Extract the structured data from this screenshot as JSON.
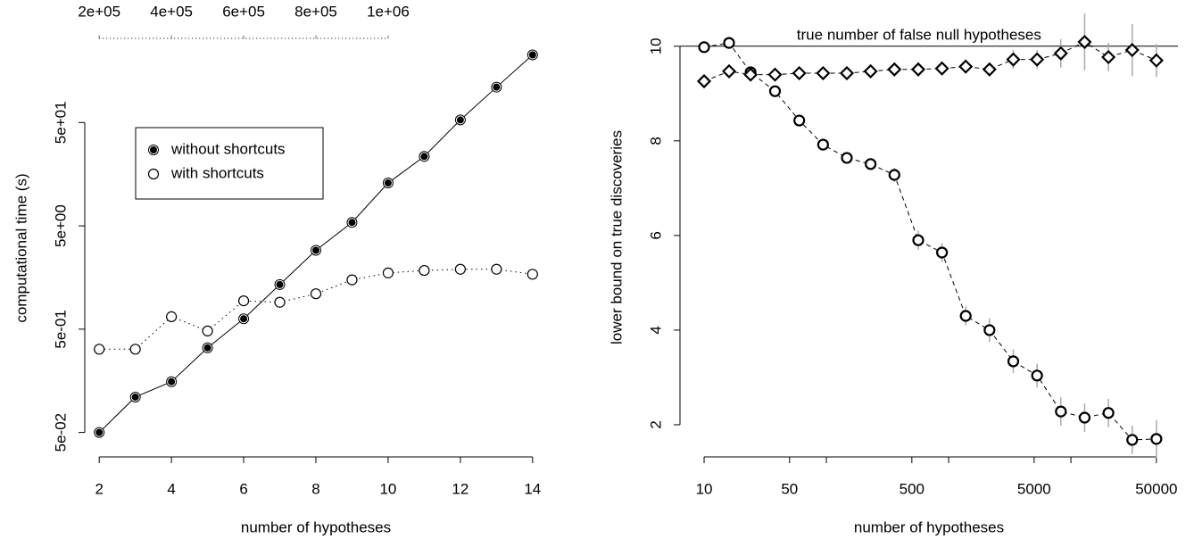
{
  "chart_data": [
    {
      "type": "line",
      "xlabel": "number of hypotheses",
      "ylabel": "computational time (s)",
      "x": [
        2,
        3,
        4,
        5,
        6,
        7,
        8,
        9,
        10,
        11,
        12,
        13,
        14
      ],
      "xlim": [
        1.6,
        14.4
      ],
      "xticks": [
        2,
        4,
        6,
        8,
        10,
        12,
        14
      ],
      "yscale": "log",
      "ylim": [
        0.029,
        320
      ],
      "yticks": [
        {
          "value": 0.05,
          "label": "5e-02"
        },
        {
          "value": 0.5,
          "label": "5e-01"
        },
        {
          "value": 5,
          "label": "5e+00"
        },
        {
          "value": 50,
          "label": "5e+01"
        }
      ],
      "x2lim": [
        160000,
        1440000
      ],
      "x2ticks": [
        {
          "value": 200000,
          "label": "2e+05"
        },
        {
          "value": 400000,
          "label": "4e+05"
        },
        {
          "value": 600000,
          "label": "6e+05"
        },
        {
          "value": 800000,
          "label": "8e+05"
        },
        {
          "value": 1000000,
          "label": "1e+06"
        }
      ],
      "legend": "top-left",
      "series": [
        {
          "name": "without shortcuts",
          "color": "#000000",
          "marker": "filled",
          "linestyle": "solid",
          "values": [
            0.05,
            0.11,
            0.155,
            0.33,
            0.63,
            1.35,
            2.9,
            5.4,
            13,
            23.5,
            53,
            110,
            226
          ]
        },
        {
          "name": "with shortcuts",
          "color": "#000000",
          "marker": "open",
          "linestyle": "dotted",
          "values": [
            0.32,
            0.32,
            0.66,
            0.48,
            0.94,
            0.91,
            1.1,
            1.5,
            1.75,
            1.85,
            1.9,
            1.9,
            1.7
          ]
        }
      ]
    },
    {
      "type": "line",
      "xlabel": "number of hypotheses",
      "ylabel": "lower bound on true discoveries",
      "xscale": "log",
      "x": [
        10,
        16,
        24,
        38,
        60,
        94,
        147,
        230,
        360,
        564,
        882,
        1379,
        2158,
        3378,
        5285,
        8271,
        12943,
        20256,
        31698,
        50000
      ],
      "xlim": [
        6.35,
        75000
      ],
      "xticks": [
        10,
        50,
        500,
        5000,
        50000
      ],
      "xminorticks": [
        100,
        1000,
        10000
      ],
      "ylim": [
        1.32,
        10.6
      ],
      "yticks": [
        2,
        4,
        6,
        8,
        10
      ],
      "hline": {
        "value": 10,
        "label": "true number of false null hypotheses"
      },
      "error_color": "#aaaaaa",
      "series": [
        {
          "color": "#000000",
          "marker": "open",
          "linestyle": "dashed",
          "values": [
            9.98,
            10.07,
            9.45,
            9.05,
            8.43,
            7.92,
            7.64,
            7.51,
            7.28,
            5.9,
            5.64,
            4.3,
            4.0,
            3.34,
            3.04,
            2.28,
            2.15,
            2.25,
            1.68,
            1.7
          ],
          "errors": [
            0.05,
            0.05,
            0.1,
            0.1,
            0.1,
            0.1,
            0.1,
            0.1,
            0.15,
            0.2,
            0.2,
            0.2,
            0.25,
            0.25,
            0.25,
            0.3,
            0.3,
            0.3,
            0.3,
            0.4
          ]
        },
        {
          "color": "#000000",
          "marker": "diamond",
          "linestyle": "dashed",
          "values": [
            9.26,
            9.47,
            9.4,
            9.4,
            9.43,
            9.43,
            9.43,
            9.47,
            9.51,
            9.51,
            9.53,
            9.57,
            9.51,
            9.72,
            9.72,
            9.85,
            10.09,
            9.77,
            9.92,
            9.7
          ],
          "errors": [
            0.1,
            0.1,
            0.1,
            0.1,
            0.1,
            0.1,
            0.1,
            0.1,
            0.15,
            0.15,
            0.15,
            0.15,
            0.15,
            0.2,
            0.2,
            0.3,
            0.6,
            0.3,
            0.55,
            0.35
          ]
        }
      ]
    }
  ]
}
